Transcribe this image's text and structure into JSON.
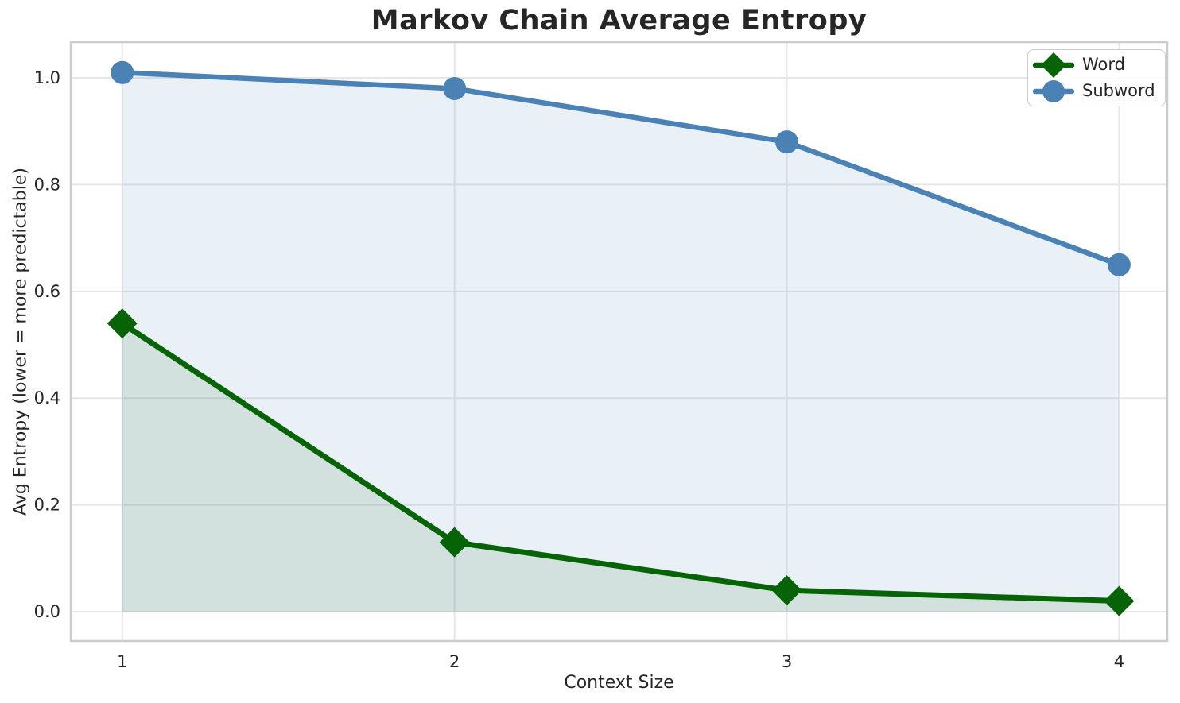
{
  "chart_data": {
    "type": "line",
    "title": "Markov Chain Average Entropy",
    "xlabel": "Context Size",
    "ylabel": "Avg Entropy (lower = more predictable)",
    "x": [
      1,
      2,
      3,
      4
    ],
    "xtick_labels": [
      "1",
      "2",
      "3",
      "4"
    ],
    "yticks": [
      0.0,
      0.2,
      0.4,
      0.6,
      0.8,
      1.0
    ],
    "ytick_labels": [
      "0.0",
      "0.2",
      "0.4",
      "0.6",
      "0.8",
      "1.0"
    ],
    "xlim": [
      0.845,
      4.145
    ],
    "ylim": [
      -0.055,
      1.067
    ],
    "grid": true,
    "legend_position": "upper right",
    "area_baseline": 0,
    "series": [
      {
        "name": "Word",
        "values": [
          0.54,
          0.13,
          0.04,
          0.02
        ],
        "color": "#066406",
        "marker": "diamond",
        "fill_alpha": 0.1
      },
      {
        "name": "Subword",
        "values": [
          1.01,
          0.98,
          0.88,
          0.65
        ],
        "color": "#4a82b5",
        "marker": "circle",
        "fill_alpha": 0.12
      }
    ]
  },
  "style": {
    "text_color": "#262626",
    "grid_color": "#e7e7ea",
    "spine_color": "#cccccc",
    "background": "#ffffff"
  }
}
